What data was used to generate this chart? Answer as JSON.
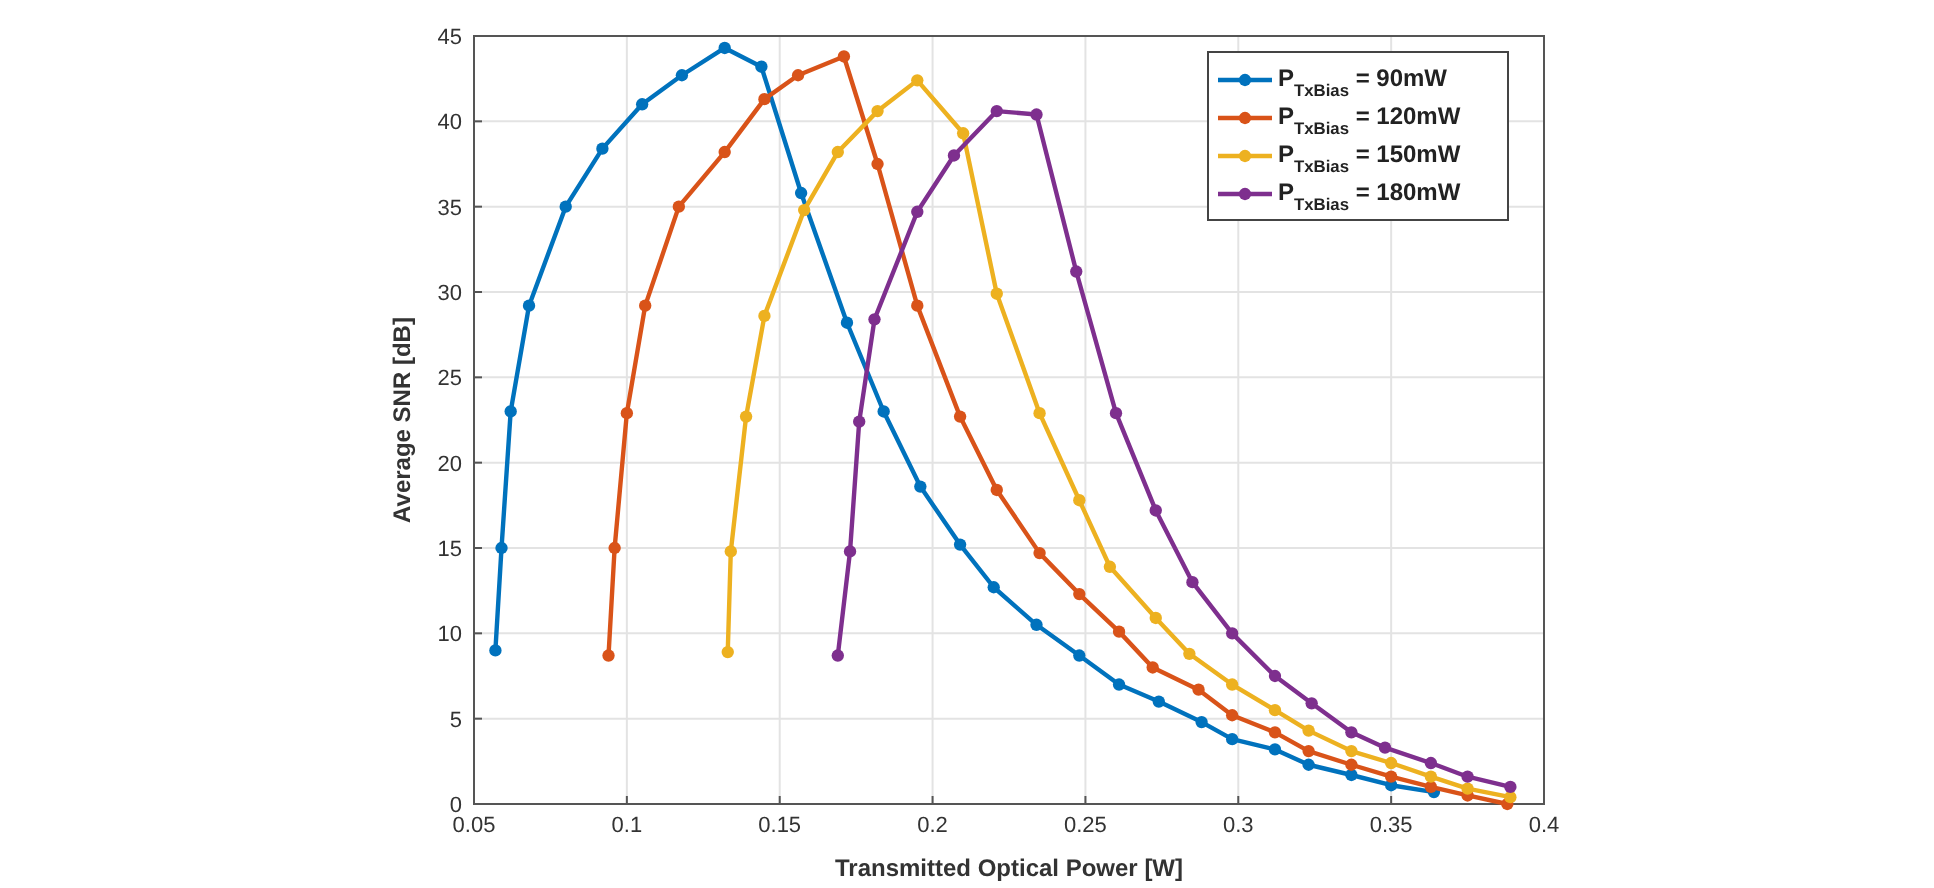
{
  "chart_data": {
    "type": "line",
    "xlabel": "Transmitted Optical Power [W]",
    "ylabel": "Average SNR [dB]",
    "xlim": [
      0.05,
      0.4
    ],
    "ylim": [
      0,
      45
    ],
    "xticks": [
      0.05,
      0.1,
      0.15,
      0.2,
      0.25,
      0.3,
      0.35,
      0.4
    ],
    "yticks": [
      0,
      5,
      10,
      15,
      20,
      25,
      30,
      35,
      40,
      45
    ],
    "grid": true,
    "legend": "top right",
    "marker": "circle",
    "line_style": "solid",
    "series": [
      {
        "name": "P$_{TxBias}$ = 90mW",
        "color": "#0072bd",
        "x": [
          0.057,
          0.059,
          0.062,
          0.068,
          0.08,
          0.092,
          0.105,
          0.118,
          0.132,
          0.144,
          0.157,
          0.172,
          0.184,
          0.196,
          0.209,
          0.22,
          0.234,
          0.248,
          0.261,
          0.274,
          0.288,
          0.298,
          0.312,
          0.323,
          0.337,
          0.35,
          0.364
        ],
        "values": [
          9,
          15,
          23,
          29.2,
          35,
          38.4,
          41,
          42.7,
          44.3,
          43.2,
          35.8,
          28.2,
          23,
          18.6,
          15.2,
          12.7,
          10.5,
          8.7,
          7,
          6,
          4.8,
          3.8,
          3.2,
          2.3,
          1.7,
          1.1,
          0.7
        ]
      },
      {
        "name": "P$_{TxBias}$ = 120mW",
        "color": "#d95319",
        "x": [
          0.094,
          0.096,
          0.1,
          0.106,
          0.117,
          0.132,
          0.145,
          0.156,
          0.171,
          0.182,
          0.195,
          0.209,
          0.221,
          0.235,
          0.248,
          0.261,
          0.272,
          0.287,
          0.298,
          0.312,
          0.323,
          0.337,
          0.35,
          0.363,
          0.375,
          0.388
        ],
        "values": [
          8.7,
          15,
          22.9,
          29.2,
          35,
          38.2,
          41.3,
          42.7,
          43.8,
          37.5,
          29.2,
          22.7,
          18.4,
          14.7,
          12.3,
          10.1,
          8,
          6.7,
          5.2,
          4.2,
          3.1,
          2.3,
          1.6,
          1,
          0.5,
          0
        ]
      },
      {
        "name": "P$_{TxBias}$ = 150mW",
        "color": "#edb120",
        "x": [
          0.133,
          0.134,
          0.139,
          0.145,
          0.158,
          0.169,
          0.182,
          0.195,
          0.21,
          0.221,
          0.235,
          0.248,
          0.258,
          0.273,
          0.284,
          0.298,
          0.312,
          0.323,
          0.337,
          0.35,
          0.363,
          0.375,
          0.389
        ],
        "values": [
          8.9,
          14.8,
          22.7,
          28.6,
          34.8,
          38.2,
          40.6,
          42.4,
          39.3,
          29.9,
          22.9,
          17.8,
          13.9,
          10.9,
          8.8,
          7,
          5.5,
          4.3,
          3.1,
          2.4,
          1.6,
          0.9,
          0.4
        ]
      },
      {
        "name": "P$_{TxBias}$ = 180mW",
        "color": "#7e2f8e",
        "x": [
          0.169,
          0.173,
          0.176,
          0.181,
          0.195,
          0.207,
          0.221,
          0.234,
          0.247,
          0.26,
          0.273,
          0.285,
          0.298,
          0.312,
          0.324,
          0.337,
          0.348,
          0.363,
          0.375,
          0.389
        ],
        "values": [
          8.7,
          14.8,
          22.4,
          28.4,
          34.7,
          38,
          40.6,
          40.4,
          31.2,
          22.9,
          17.2,
          13,
          10,
          7.5,
          5.9,
          4.2,
          3.3,
          2.4,
          1.6,
          1
        ]
      }
    ]
  }
}
